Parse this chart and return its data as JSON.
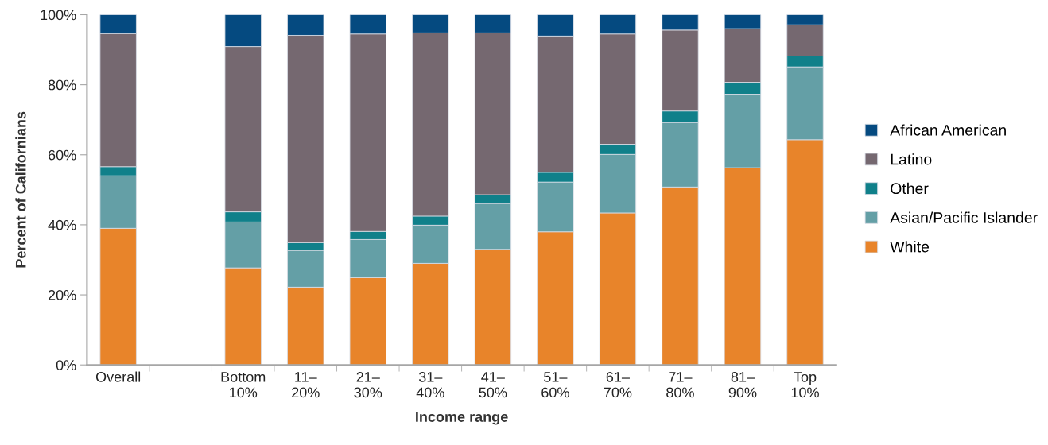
{
  "chart_data": {
    "type": "bar",
    "stacked": true,
    "xlabel": "Income range",
    "ylabel": "Percent of Californians",
    "categories": [
      "Overall",
      null,
      "Bottom\n10%",
      "11–\n20%",
      "21–\n30%",
      "31–\n40%",
      "41–\n50%",
      "51–\n60%",
      "61–\n70%",
      "71–\n80%",
      "81–\n90%",
      "Top\n10%"
    ],
    "series": [
      {
        "name": "White",
        "color": "#e8842a",
        "values": [
          39.0,
          null,
          27.7,
          22.2,
          24.9,
          29.0,
          33.0,
          38.0,
          43.4,
          50.8,
          56.3,
          64.3
        ]
      },
      {
        "name": "Asian/Pacific Islander",
        "color": "#649fa6",
        "values": [
          15.0,
          null,
          13.1,
          10.5,
          10.9,
          10.9,
          13.1,
          14.2,
          16.7,
          18.4,
          21.0,
          20.8
        ]
      },
      {
        "name": "Other",
        "color": "#10808a",
        "values": [
          2.6,
          null,
          2.9,
          2.2,
          2.3,
          2.6,
          2.5,
          2.8,
          2.9,
          3.3,
          3.4,
          3.1
        ]
      },
      {
        "name": "Latino",
        "color": "#756870",
        "values": [
          38.0,
          null,
          47.2,
          59.2,
          56.4,
          52.3,
          46.2,
          38.9,
          31.5,
          23.1,
          15.3,
          8.9
        ]
      },
      {
        "name": "African American",
        "color": "#054a80",
        "values": [
          5.4,
          null,
          9.1,
          5.9,
          5.5,
          5.2,
          5.2,
          6.1,
          5.5,
          4.4,
          4.0,
          2.9
        ]
      }
    ],
    "ylim": [
      0,
      100
    ],
    "yticks": [
      {
        "value": 0,
        "label": "0%"
      },
      {
        "value": 20,
        "label": "20%"
      },
      {
        "value": 40,
        "label": "40%"
      },
      {
        "value": 60,
        "label": "60%"
      },
      {
        "value": 80,
        "label": "80%"
      },
      {
        "value": 100,
        "label": "100%"
      }
    ],
    "grid": false,
    "legend": "right"
  }
}
